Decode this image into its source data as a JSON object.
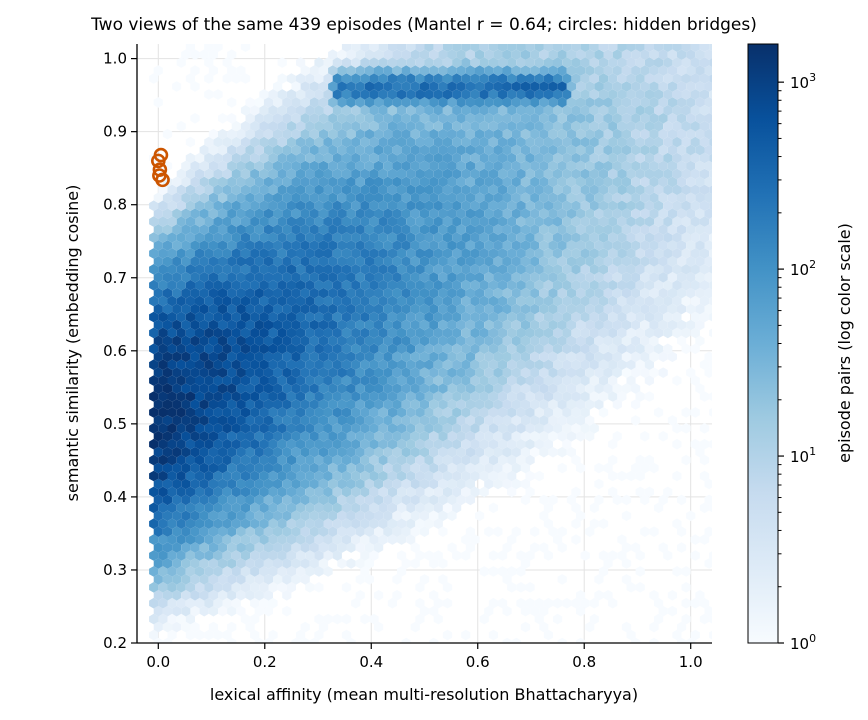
{
  "chart_data": {
    "type": "heatmap",
    "subtype": "hexbin",
    "title": "Two views of the same 439 episodes (Mantel r = 0.64; circles: hidden bridges)",
    "xlabel": "lexical affinity (mean multi-resolution Bhattacharyya)",
    "ylabel": "semantic similarity (embedding cosine)",
    "xlim": [
      -0.04,
      1.04
    ],
    "ylim": [
      0.2,
      1.02
    ],
    "xticks": [
      "0.0",
      "0.2",
      "0.4",
      "0.6",
      "0.8",
      "1.0"
    ],
    "yticks": [
      "0.2",
      "0.3",
      "0.4",
      "0.5",
      "0.6",
      "0.7",
      "0.8",
      "0.9",
      "1.0"
    ],
    "grid": true,
    "colorbar": {
      "label": "episode pairs (log color scale)",
      "scale": "log",
      "range": [
        1,
        1600
      ],
      "colormap": "Blues",
      "ticks": [
        {
          "base": "10",
          "exp": "0",
          "value": 1
        },
        {
          "base": "10",
          "exp": "1",
          "value": 10
        },
        {
          "base": "10",
          "exp": "2",
          "value": 100
        },
        {
          "base": "10",
          "exp": "3",
          "value": 1000
        }
      ]
    },
    "density_regions": [
      {
        "name": "main mass",
        "center_x": 0.14,
        "center_y": 0.6,
        "peak_count": 1600
      },
      {
        "name": "upper band",
        "x_range": [
          0.34,
          0.76
        ],
        "y": 0.96,
        "peak_count": 300
      }
    ],
    "hidden_bridges": {
      "marker": "circle",
      "color": "#cc5500",
      "points": [
        {
          "x": 0.005,
          "y": 0.868
        },
        {
          "x": 0.0,
          "y": 0.86
        },
        {
          "x": 0.003,
          "y": 0.848
        },
        {
          "x": 0.002,
          "y": 0.84
        },
        {
          "x": 0.008,
          "y": 0.834
        }
      ]
    }
  }
}
